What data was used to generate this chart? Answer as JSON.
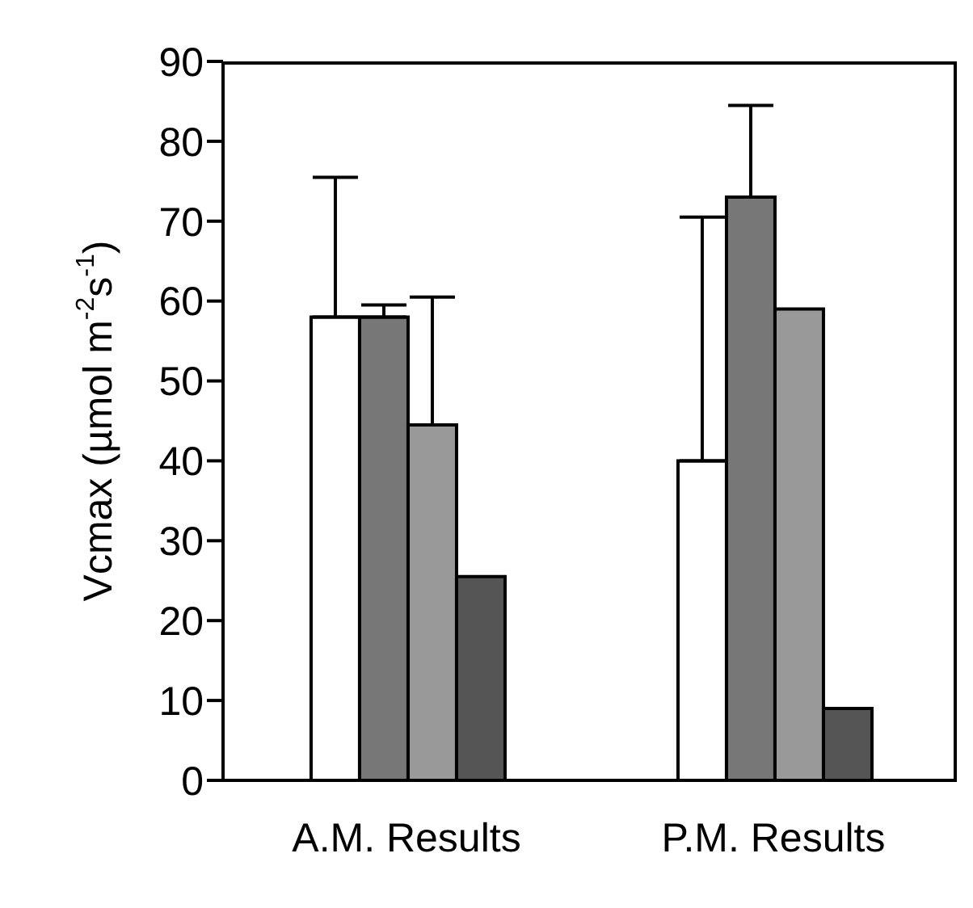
{
  "chart_data": {
    "type": "bar",
    "ylabel": "Vcmax (µmol m$^{-2}$s$^{-1}$)",
    "categories": [
      "A.M. Results",
      "P.M. Results"
    ],
    "series": [
      {
        "color": "#ffffff",
        "values": [
          58,
          40
        ],
        "errors": [
          [
            58,
            75.5
          ],
          [
            40,
            70.5
          ]
        ]
      },
      {
        "color": "#777777",
        "values": [
          58,
          73
        ],
        "errors": [
          [
            58,
            59.5
          ],
          [
            73,
            84.5
          ]
        ]
      },
      {
        "color": "#999999",
        "values": [
          44.5,
          59
        ],
        "errors": [
          [
            44.5,
            60.5
          ],
          null
        ]
      },
      {
        "color": "#555555",
        "values": [
          25.5,
          9
        ],
        "errors": [
          null,
          null
        ]
      }
    ],
    "ylim": [
      0,
      90
    ],
    "yticks": [
      0,
      10,
      20,
      30,
      40,
      50,
      60,
      70,
      80,
      90
    ],
    "grid": false,
    "legend": false
  }
}
